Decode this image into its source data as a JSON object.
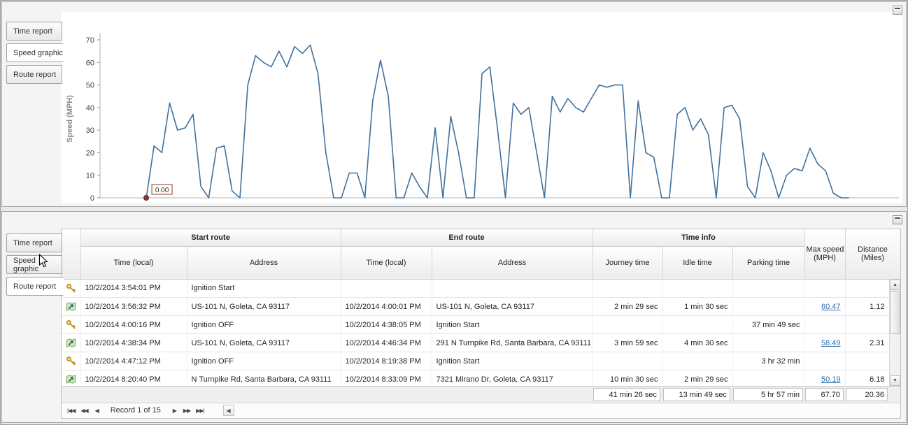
{
  "tabs": [
    {
      "label": "Time report"
    },
    {
      "label": "Speed graphic"
    },
    {
      "label": "Route report"
    }
  ],
  "panels": {
    "top": {
      "selected_tab": "Speed graphic"
    },
    "bottom": {
      "selected_tab": "Route report"
    }
  },
  "chart_data": {
    "type": "line",
    "title": "",
    "xlabel": "",
    "ylabel": "Speed (MPH)",
    "ylim": [
      0,
      70
    ],
    "yticks": [
      0,
      10,
      20,
      30,
      40,
      50,
      60,
      70
    ],
    "grid": false,
    "legend": "none",
    "line_color": "#41719C",
    "marker": {
      "index": 0,
      "label": "0.00",
      "color": "#943634"
    },
    "x_start_frac": 0.058,
    "x_end_frac": 0.94,
    "values": [
      0,
      23,
      20,
      42,
      30,
      31,
      37,
      5,
      0,
      22,
      23,
      3,
      0,
      50,
      63,
      60,
      58,
      65,
      58,
      67,
      64,
      67.7,
      55,
      20,
      0,
      0,
      11,
      11,
      0,
      43,
      61,
      45,
      0,
      0,
      11,
      5,
      0,
      31,
      0,
      36,
      20,
      0,
      0,
      55,
      58,
      30,
      0,
      42,
      37,
      40,
      20,
      0,
      45,
      38,
      44,
      40,
      38,
      44,
      50,
      49,
      50,
      50,
      0,
      43,
      20,
      18,
      0,
      0,
      37,
      40,
      30,
      35,
      28,
      0,
      40,
      41,
      35,
      5,
      0,
      20,
      12,
      0,
      10,
      13,
      12,
      22,
      15,
      12,
      2,
      0,
      0
    ]
  },
  "table": {
    "group_headers": [
      {
        "label": "Start route"
      },
      {
        "label": "End route"
      },
      {
        "label": "Time info"
      }
    ],
    "columns": [
      "Time (local)",
      "Address",
      "Time (local)",
      "Address",
      "Journey time",
      "Idle time",
      "Parking time"
    ],
    "max_speed_header": {
      "line1": "Max speed",
      "line2": "(MPH)"
    },
    "distance_header": {
      "line1": "Distance",
      "line2": "(Miles)"
    },
    "rows": [
      {
        "icon": "key",
        "start_time": "10/2/2014 3:54:01 PM",
        "start_address": "Ignition Start",
        "end_time": "",
        "end_address": "",
        "journey": "",
        "idle": "",
        "parking": "",
        "max_speed": "",
        "distance": ""
      },
      {
        "icon": "route",
        "start_time": "10/2/2014 3:56:32 PM",
        "start_address": "US-101 N, Goleta, CA 93117",
        "end_time": "10/2/2014 4:00:01 PM",
        "end_address": "US-101 N, Goleta, CA 93117",
        "journey": "2 min 29 sec",
        "idle": "1 min 30 sec",
        "parking": "",
        "max_speed": "60.47",
        "distance": "1.12"
      },
      {
        "icon": "key",
        "start_time": "10/2/2014 4:00:16 PM",
        "start_address": "Ignition OFF",
        "end_time": "10/2/2014 4:38:05 PM",
        "end_address": "Ignition Start",
        "journey": "",
        "idle": "",
        "parking": "37 min 49 sec",
        "max_speed": "",
        "distance": ""
      },
      {
        "icon": "route",
        "start_time": "10/2/2014 4:38:34 PM",
        "start_address": "US-101 N, Goleta, CA 93117",
        "end_time": "10/2/2014 4:46:34 PM",
        "end_address": "291 N Turnpike Rd, Santa Barbara, CA 93111",
        "journey": "3 min 59 sec",
        "idle": "4 min 30 sec",
        "parking": "",
        "max_speed": "58.49",
        "distance": "2.31"
      },
      {
        "icon": "key",
        "start_time": "10/2/2014 4:47:12 PM",
        "start_address": "Ignition OFF",
        "end_time": "10/2/2014 8:19:38 PM",
        "end_address": "Ignition Start",
        "journey": "",
        "idle": "",
        "parking": "3 hr 32 min",
        "max_speed": "",
        "distance": ""
      },
      {
        "icon": "route",
        "start_time": "10/2/2014 8:20:40 PM",
        "start_address": "N Turnpike Rd, Santa Barbara, CA 93111",
        "end_time": "10/2/2014 8:33:09 PM",
        "end_address": "7321 Mirano Dr, Goleta, CA 93117",
        "journey": "10 min 30 sec",
        "idle": "2 min 29 sec",
        "parking": "",
        "max_speed": "50.19",
        "distance": "6.18"
      }
    ],
    "summary": {
      "journey": "41 min 26 sec",
      "idle": "13 min 49 sec",
      "parking": "5 hr 57 min",
      "max_speed": "67.70",
      "distance": "20.36"
    },
    "pager": {
      "record_label": "Record 1 of 15",
      "buttons": [
        {
          "name": "first-record-button",
          "glyph": "|◀◀"
        },
        {
          "name": "prev-page-button",
          "glyph": "◀◀"
        },
        {
          "name": "prev-record-button",
          "glyph": "◀"
        },
        {
          "name": "next-record-button",
          "glyph": "▶"
        },
        {
          "name": "next-page-button",
          "glyph": "▶▶"
        },
        {
          "name": "last-record-button",
          "glyph": "▶▶|"
        }
      ],
      "hscroll_left_glyph": "◀"
    },
    "vscroll": {
      "up_glyph": "▲",
      "down_glyph": "▼"
    }
  }
}
